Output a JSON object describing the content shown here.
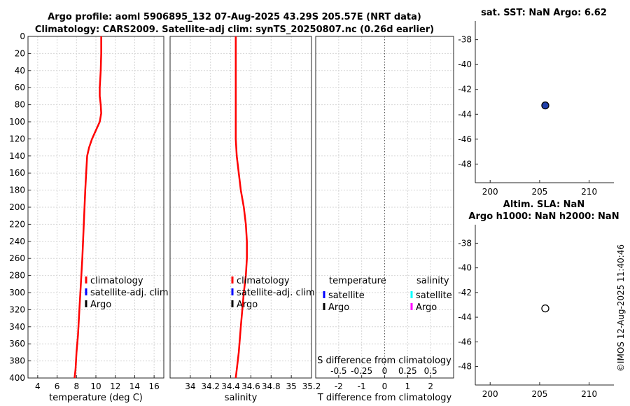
{
  "title_line1": "Argo profile: aoml 5906895_132 07-Aug-2025 43.29S 205.57E (NRT data)",
  "title_line2": "Climatology: CARS2009. Satellite-adj clim: synTS_20250807.nc (0.26d earlier)",
  "footer": "©IMOS 12-Aug-2025 11:40:46",
  "colors": {
    "climatology": "#ff0000",
    "satellite": "#0000ff",
    "argo": "#000000",
    "satellite_s": "#00ffff",
    "argo_s": "#ff00ff",
    "marker_fill": "#1f3faa"
  },
  "chart_data": [
    {
      "id": "temperature",
      "type": "line",
      "xlabel": "temperature (deg C)",
      "ylabel": "",
      "xlim": [
        3,
        17
      ],
      "ylim": [
        400,
        0
      ],
      "xticks": [
        "4",
        "6",
        "8",
        "10",
        "12",
        "14",
        "16"
      ],
      "xtick_values": [
        4,
        6,
        8,
        10,
        12,
        14,
        16
      ],
      "yticks": [
        "0",
        "20",
        "40",
        "60",
        "80",
        "100",
        "120",
        "140",
        "160",
        "180",
        "200",
        "220",
        "240",
        "260",
        "280",
        "300",
        "320",
        "340",
        "360",
        "380",
        "400"
      ],
      "ytick_values": [
        0,
        20,
        40,
        60,
        80,
        100,
        120,
        140,
        160,
        180,
        200,
        220,
        240,
        260,
        280,
        300,
        320,
        340,
        360,
        380,
        400
      ],
      "series": [
        {
          "name": "climatology",
          "x": [
            10.55,
            10.55,
            10.5,
            10.4,
            10.4,
            10.5,
            10.55,
            10.4,
            10.0,
            9.6,
            9.3,
            9.1,
            9.0,
            8.9,
            8.75,
            8.6,
            8.45,
            8.3,
            8.15,
            8.0,
            7.9,
            7.8
          ],
          "y": [
            0,
            20,
            40,
            60,
            70,
            80,
            90,
            100,
            110,
            120,
            130,
            140,
            160,
            180,
            220,
            260,
            290,
            320,
            350,
            370,
            390,
            400
          ]
        }
      ],
      "legend": {
        "placement": "lower-right",
        "entries": [
          "climatology",
          "satellite-adj. clim",
          "Argo"
        ]
      }
    },
    {
      "id": "salinity",
      "type": "line",
      "xlabel": "salinity",
      "ylabel": "",
      "xlim": [
        33.8,
        35.2
      ],
      "ylim": [
        400,
        0
      ],
      "xticks": [
        "34",
        "34.2",
        "34.4",
        "34.6",
        "34.8",
        "35",
        "35.2"
      ],
      "xtick_values": [
        34,
        34.2,
        34.4,
        34.6,
        34.8,
        35,
        35.2
      ],
      "series": [
        {
          "name": "climatology",
          "x": [
            34.45,
            34.45,
            34.45,
            34.45,
            34.45,
            34.46,
            34.48,
            34.5,
            34.53,
            34.55,
            34.56,
            34.56,
            34.55,
            34.53,
            34.5,
            34.48,
            34.45
          ],
          "y": [
            0,
            40,
            80,
            100,
            120,
            140,
            160,
            180,
            200,
            220,
            240,
            260,
            280,
            300,
            340,
            370,
            400
          ]
        }
      ],
      "legend": {
        "placement": "lower-right",
        "entries": [
          "climatology",
          "satellite-adj. clim",
          "Argo"
        ]
      }
    },
    {
      "id": "difference",
      "type": "line",
      "xlabel": "T difference from climatology",
      "top_xlabel": "S difference from climatology",
      "xlim": [
        -3,
        3
      ],
      "ylim": [
        400,
        0
      ],
      "xticks": [
        "-2",
        "-1",
        "0",
        "1",
        "2"
      ],
      "xtick_values": [
        -2,
        -1,
        0,
        1,
        2
      ],
      "s_xticks": [
        "-0.5",
        "-0.25",
        "0",
        "0.25",
        "0.5"
      ],
      "s_xtick_values": [
        -0.5,
        -0.25,
        0,
        0.25,
        0.5
      ],
      "s_xlim": [
        -0.75,
        0.75
      ],
      "series": [],
      "legend": {
        "temperature_title": "temperature",
        "salinity_title": "salinity",
        "temperature_entries": [
          "satellite",
          "Argo"
        ],
        "salinity_entries": [
          "satellite",
          "Argo"
        ]
      }
    },
    {
      "id": "map_sst",
      "type": "scatter",
      "title": "sat. SST: NaN Argo: 6.62",
      "xlim": [
        198.5,
        212.5
      ],
      "ylim": [
        -49.5,
        -36.5
      ],
      "xticks": [
        "200",
        "205",
        "210"
      ],
      "xtick_values": [
        200,
        205,
        210
      ],
      "yticks": [
        "-38",
        "-40",
        "-42",
        "-44",
        "-46",
        "-48"
      ],
      "ytick_values": [
        -38,
        -40,
        -42,
        -44,
        -46,
        -48
      ],
      "points": [
        {
          "x": 205.57,
          "y": -43.29,
          "filled": true
        }
      ]
    },
    {
      "id": "map_sla",
      "type": "scatter",
      "title_line1": "Altim. SLA: NaN",
      "title_line2": "Argo h1000: NaN h2000: NaN",
      "xlim": [
        198.5,
        212.5
      ],
      "ylim": [
        -49.5,
        -36.5
      ],
      "xticks": [
        "200",
        "205",
        "210"
      ],
      "xtick_values": [
        200,
        205,
        210
      ],
      "yticks": [
        "-38",
        "-40",
        "-42",
        "-44",
        "-46",
        "-48"
      ],
      "ytick_values": [
        -38,
        -40,
        -42,
        -44,
        -46,
        -48
      ],
      "points": [
        {
          "x": 205.57,
          "y": -43.29,
          "filled": false
        }
      ]
    }
  ]
}
